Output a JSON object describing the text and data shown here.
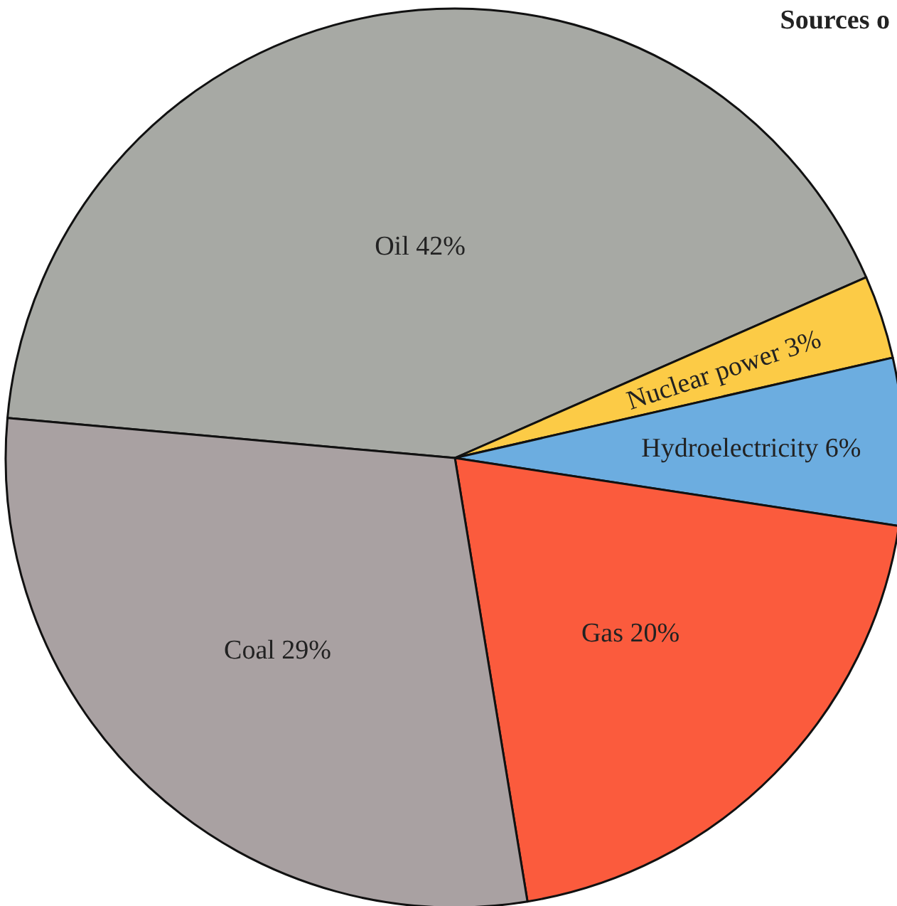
{
  "chart_data": {
    "type": "pie",
    "title": "Sources o",
    "categories": [
      "Oil",
      "Nuclear power",
      "Hydroelectricity",
      "Gas",
      "Coal"
    ],
    "values": [
      42,
      3,
      6,
      20,
      29
    ],
    "value_labels": [
      "42%",
      "3%",
      "6%",
      "20%",
      "29%"
    ],
    "colors": [
      "#a7a9a4",
      "#fccb46",
      "#6cade0",
      "#fb5b3d",
      "#a9a1a2"
    ]
  }
}
